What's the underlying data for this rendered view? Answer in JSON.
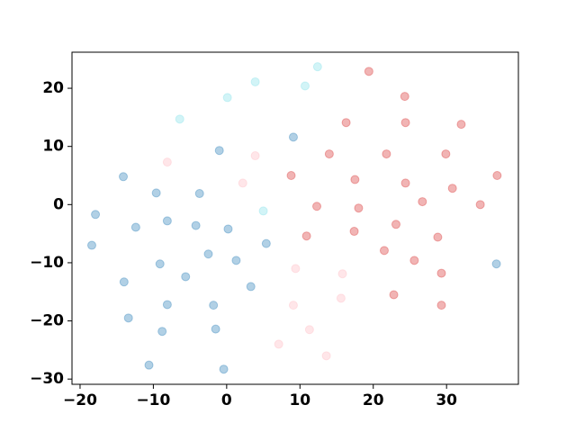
{
  "chart_data": {
    "type": "scatter",
    "alpha": 0.35,
    "xlim": [
      -21.1,
      39.8
    ],
    "ylim": [
      -30.9,
      26.2
    ],
    "xticks": [
      {
        "value": -20,
        "label": "−20"
      },
      {
        "value": -10,
        "label": "−10"
      },
      0,
      10,
      20,
      30
    ],
    "yticks": [
      {
        "value": -30,
        "label": "−30"
      },
      {
        "value": -20,
        "label": "−20"
      },
      {
        "value": -10,
        "label": "−10"
      },
      0,
      10,
      20
    ],
    "series": [
      {
        "color": "#1f77b4",
        "x": [
          -14.1,
          -17.9,
          -18.4,
          -9.6,
          -12.4,
          -8.1,
          -3.7,
          -1.0,
          -4.2,
          0.2,
          -2.5,
          -9.1,
          -5.6,
          -14.0,
          1.3,
          5.4,
          3.3,
          -8.1,
          -1.8,
          -13.4,
          -8.8,
          -1.5,
          -10.6,
          -0.4,
          9.1,
          36.8
        ],
        "y": [
          4.8,
          -1.7,
          -7.0,
          2.0,
          -3.9,
          -2.8,
          1.9,
          9.3,
          -3.6,
          -4.2,
          -8.5,
          -10.2,
          -12.4,
          -13.3,
          -9.6,
          -6.7,
          -14.1,
          -17.2,
          -17.3,
          -19.5,
          -21.8,
          -21.4,
          -27.6,
          -28.3,
          11.6,
          -10.2
        ]
      },
      {
        "color": "#d62728",
        "x": [
          19.4,
          24.3,
          16.3,
          24.4,
          32.0,
          14.0,
          21.8,
          29.9,
          8.8,
          17.5,
          24.4,
          36.9,
          30.8,
          26.7,
          34.6,
          12.3,
          18.0,
          23.1,
          17.4,
          10.9,
          28.8,
          21.5,
          25.6,
          29.3,
          22.8,
          29.3
        ],
        "y": [
          22.9,
          18.6,
          14.1,
          14.1,
          13.8,
          8.7,
          8.7,
          8.7,
          5.0,
          4.3,
          3.7,
          5.0,
          2.8,
          0.5,
          0.0,
          -0.3,
          -0.6,
          -3.4,
          -4.6,
          -5.4,
          -5.6,
          -7.9,
          -9.6,
          -11.8,
          -15.5,
          -17.3
        ]
      },
      {
        "color": "#ffb6c1",
        "x": [
          -8.1,
          3.9,
          2.2,
          9.4,
          15.8,
          15.6,
          9.1,
          11.3,
          7.1,
          13.6
        ],
        "y": [
          7.3,
          8.4,
          3.7,
          -11.0,
          -11.9,
          -16.1,
          -17.3,
          -21.5,
          -24.0,
          -26.0
        ]
      },
      {
        "color": "#7fe0e8",
        "x": [
          12.4,
          3.9,
          10.7,
          0.1,
          -6.4,
          5.0
        ],
        "y": [
          23.7,
          21.1,
          20.4,
          18.4,
          14.7,
          -1.1
        ]
      }
    ]
  }
}
